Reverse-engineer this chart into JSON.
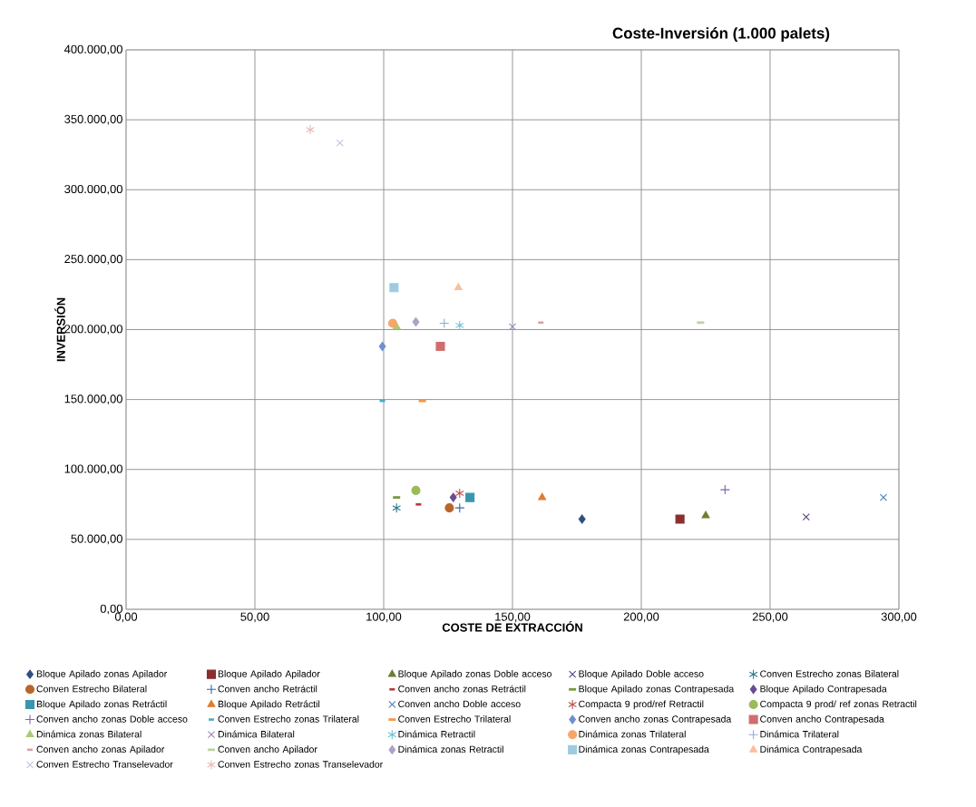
{
  "chart_data": {
    "type": "scatter",
    "title": "Coste-Inversión (1.000 palets)",
    "xlabel": "COSTE DE EXTRACCIÓN",
    "ylabel": "INVERSIÓN",
    "xlim": [
      0,
      300
    ],
    "ylim": [
      0,
      400000
    ],
    "xticks": [
      {
        "value": 0,
        "label": "0,00"
      },
      {
        "value": 50,
        "label": "50,00"
      },
      {
        "value": 100,
        "label": "100,00"
      },
      {
        "value": 150,
        "label": "150,00"
      },
      {
        "value": 200,
        "label": "200,00"
      },
      {
        "value": 250,
        "label": "250,00"
      },
      {
        "value": 300,
        "label": "300,00"
      }
    ],
    "yticks": [
      {
        "value": 0,
        "label": "0,00"
      },
      {
        "value": 50000,
        "label": "50.000,00"
      },
      {
        "value": 100000,
        "label": "100.000,00"
      },
      {
        "value": 150000,
        "label": "150.000,00"
      },
      {
        "value": 200000,
        "label": "200.000,00"
      },
      {
        "value": 250000,
        "label": "250.000,00"
      },
      {
        "value": 300000,
        "label": "300.000,00"
      },
      {
        "value": 350000,
        "label": "350.000,00"
      },
      {
        "value": 400000,
        "label": "400.000,00"
      }
    ],
    "grid": true,
    "legend": "bottom",
    "series": [
      {
        "name": "Bloque Apilado zonas Apilador",
        "color": "#2f4f7f",
        "x": [
          177
        ],
        "values": [
          64500
        ]
      },
      {
        "name": "Bloque Apilado Apilador",
        "color": "#8b2e2e",
        "x": [
          215
        ],
        "values": [
          64500
        ]
      },
      {
        "name": "Bloque Apilado zonas Doble acceso",
        "color": "#6b7f30",
        "x": [
          225
        ],
        "values": [
          67000
        ]
      },
      {
        "name": "Bloque Apilado  Doble acceso",
        "color": "#5a437a",
        "x": [
          264
        ],
        "values": [
          66000
        ]
      },
      {
        "name": "Conven Estrecho zonas Bilateral",
        "color": "#2a7b8f",
        "x": [
          105
        ],
        "values": [
          72500
        ]
      },
      {
        "name": "Conven Estrecho Bilateral",
        "color": "#b8652a",
        "x": [
          125.5
        ],
        "values": [
          72500
        ]
      },
      {
        "name": "Conven ancho Retráctil",
        "color": "#3a64a8",
        "x": [
          129.5
        ],
        "values": [
          72500
        ]
      },
      {
        "name": "Conven ancho zonas Retráctil",
        "color": "#b03a3a",
        "x": [
          113.5
        ],
        "values": [
          75000
        ]
      },
      {
        "name": "Bloque Apilado zonas Contrapesada",
        "color": "#7a9a3a",
        "x": [
          105
        ],
        "values": [
          80000
        ]
      },
      {
        "name": "Bloque Apilado  Contrapesada",
        "color": "#6a4c93",
        "x": [
          127
        ],
        "values": [
          80000
        ]
      },
      {
        "name": "Bloque Apilado zonas Retráctil",
        "color": "#3996ae",
        "x": [
          133.5
        ],
        "values": [
          80000
        ]
      },
      {
        "name": "Bloque Apilado  Retráctil",
        "color": "#e07b30",
        "x": [
          161.5
        ],
        "values": [
          80000
        ]
      },
      {
        "name": "Conven ancho Doble acceso",
        "color": "#4a7ebb",
        "x": [
          294
        ],
        "values": [
          80000
        ]
      },
      {
        "name": "Compacta 9 prod/ref Retractil",
        "color": "#c0504d",
        "x": [
          129.5
        ],
        "values": [
          83000
        ]
      },
      {
        "name": "Compacta  9 prod/ ref zonas Retractil",
        "color": "#9bbb59",
        "x": [
          112.5
        ],
        "values": [
          85000
        ]
      },
      {
        "name": "Conven ancho zonas Doble acceso",
        "color": "#8064a2",
        "x": [
          232.5
        ],
        "values": [
          85500
        ]
      },
      {
        "name": "Conven Estrecho zonas Trilateral",
        "color": "#4bacc6",
        "x": [
          99.5
        ],
        "values": [
          149000
        ]
      },
      {
        "name": "Conven Estrecho Trilateral",
        "color": "#f79646",
        "x": [
          115
        ],
        "values": [
          149000
        ]
      },
      {
        "name": "Conven ancho zonas Contrapesada",
        "color": "#6f8fcf",
        "x": [
          99.5
        ],
        "values": [
          188000
        ]
      },
      {
        "name": "Conven ancho Contrapesada",
        "color": "#cf6f6d",
        "x": [
          122
        ],
        "values": [
          188000
        ]
      },
      {
        "name": "Dinámica zonas Bilateral",
        "color": "#aacb78",
        "x": [
          105
        ],
        "values": [
          202000
        ]
      },
      {
        "name": "Dinámica Bilateral",
        "color": "#9c85b8",
        "x": [
          150
        ],
        "values": [
          202000
        ]
      },
      {
        "name": "Dinámica Retractil",
        "color": "#6cc0d6",
        "x": [
          129.5
        ],
        "values": [
          203000
        ]
      },
      {
        "name": "Dinámica zonas Trilateral",
        "color": "#f7a66a",
        "x": [
          103.5
        ],
        "values": [
          204500
        ]
      },
      {
        "name": "Dinámica Trilateral",
        "color": "#95a8d8",
        "x": [
          123.5
        ],
        "values": [
          204500
        ]
      },
      {
        "name": "Conven ancho zonas Apilador",
        "color": "#d9a0a0",
        "x": [
          161
        ],
        "values": [
          205000
        ]
      },
      {
        "name": "Conven ancho Apilador",
        "color": "#bcd49c",
        "x": [
          223
        ],
        "values": [
          205000
        ]
      },
      {
        "name": "Dinámica zonas Retractil",
        "color": "#b1a0c7",
        "x": [
          112.5
        ],
        "values": [
          205500
        ]
      },
      {
        "name": "Dinámica zonas Contrapesada",
        "color": "#9ecbe0",
        "x": [
          104
        ],
        "values": [
          230000
        ]
      },
      {
        "name": "Dinámica Contrapesada",
        "color": "#fbbf9c",
        "x": [
          129
        ],
        "values": [
          230000
        ]
      },
      {
        "name": "Conven Estrecho Transelevador",
        "color": "#b9c6e6",
        "x": [
          83
        ],
        "values": [
          333500
        ]
      },
      {
        "name": "Conven Estrecho zonas Transelevador",
        "color": "#e6b9b8",
        "x": [
          71.5
        ],
        "values": [
          343000
        ]
      }
    ]
  }
}
